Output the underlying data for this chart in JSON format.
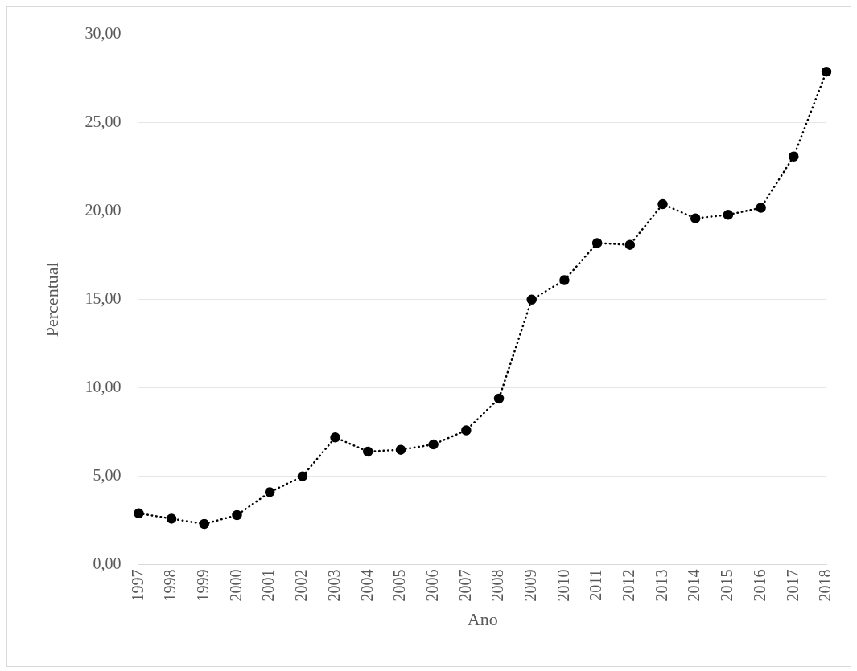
{
  "chart_data": {
    "type": "line",
    "xlabel": "Ano",
    "ylabel": "Percentual",
    "categories": [
      "1997",
      "1998",
      "1999",
      "2000",
      "2001",
      "2002",
      "2003",
      "2004",
      "2005",
      "2006",
      "2007",
      "2008",
      "2009",
      "2010",
      "2011",
      "2012",
      "2013",
      "2014",
      "2015",
      "2016",
      "2017",
      "2018"
    ],
    "series": [
      {
        "color": "#000000",
        "values": [
          2.9,
          2.6,
          2.3,
          2.8,
          4.1,
          5.0,
          7.2,
          6.4,
          6.5,
          6.8,
          7.6,
          9.4,
          15.0,
          16.1,
          18.2,
          18.1,
          20.4,
          19.6,
          19.8,
          20.2,
          23.1,
          27.9
        ]
      }
    ],
    "ylim": [
      0,
      30
    ],
    "yticks": [
      {
        "value": 0,
        "label": "0,00"
      },
      {
        "value": 5,
        "label": "5,00"
      },
      {
        "value": 10,
        "label": "10,00"
      },
      {
        "value": 15,
        "label": "15,00"
      },
      {
        "value": 20,
        "label": "20,00"
      },
      {
        "value": 25,
        "label": "25,00"
      },
      {
        "value": 30,
        "label": "30,00"
      }
    ],
    "grid": "y",
    "legend": false,
    "marker": "circle",
    "line_style": "dotted"
  }
}
